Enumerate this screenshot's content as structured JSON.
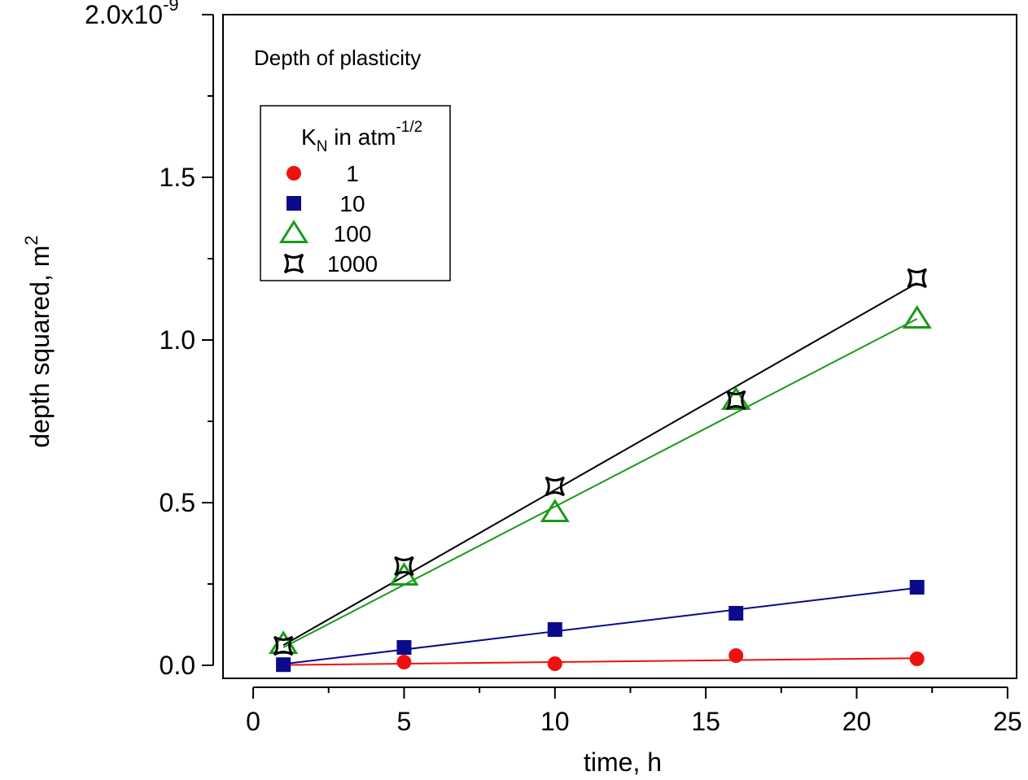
{
  "chart_data": {
    "type": "scatter",
    "title": "Depth of plasticity",
    "xlabel": "time, h",
    "ylabel": "depth squared, m",
    "ylabel_sup": "2",
    "xlim": [
      -1.0,
      25.3
    ],
    "ylim": [
      -0.04,
      2.0
    ],
    "x_ticks": [
      {
        "v": 0,
        "label": "0"
      },
      {
        "v": 5,
        "label": "5"
      },
      {
        "v": 10,
        "label": "10"
      },
      {
        "v": 15,
        "label": "15"
      },
      {
        "v": 20,
        "label": "20"
      },
      {
        "v": 25,
        "label": "25"
      }
    ],
    "y_ticks": [
      {
        "v": 0.0,
        "label": "0.0"
      },
      {
        "v": 0.5,
        "label": "0.5"
      },
      {
        "v": 1.0,
        "label": "1.0"
      },
      {
        "v": 1.5,
        "label": "1.5"
      }
    ],
    "y_top_label": {
      "v": 2.0,
      "base": "2.0x10",
      "exp": "-9"
    },
    "legend": {
      "placement": "top-left",
      "title": "K",
      "title_sub": "N",
      "title_rest": " in atm",
      "title_sup": "-1/2"
    },
    "x": [
      1,
      5,
      10,
      16,
      22
    ],
    "series": [
      {
        "name": "1",
        "marker": "circle",
        "color": "#ee1111",
        "values": [
          0.002,
          0.01,
          0.005,
          0.03,
          0.02
        ],
        "fit": [
          0.001,
          0.022
        ]
      },
      {
        "name": "10",
        "marker": "square",
        "color": "#0a0a8c",
        "values": [
          0.002,
          0.055,
          0.11,
          0.16,
          0.24
        ],
        "fit": [
          0.004,
          0.238
        ]
      },
      {
        "name": "100",
        "marker": "triangle",
        "color": "#1a9a1a",
        "values": [
          0.065,
          0.275,
          0.47,
          0.815,
          1.065
        ],
        "fit": [
          0.055,
          1.065
        ]
      },
      {
        "name": "1000",
        "marker": "star4",
        "color": "#000000",
        "values": [
          0.06,
          0.305,
          0.55,
          0.815,
          1.19
        ],
        "fit": [
          0.062,
          1.175
        ]
      }
    ]
  }
}
